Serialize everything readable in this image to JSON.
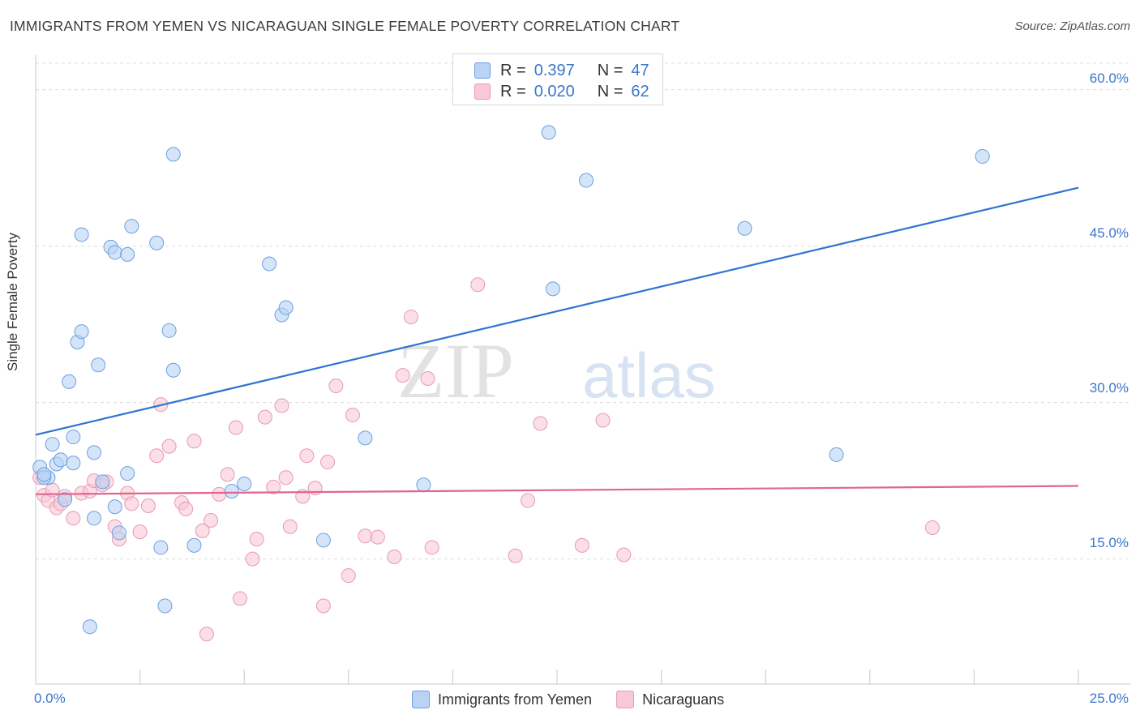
{
  "header": {
    "title": "IMMIGRANTS FROM YEMEN VS NICARAGUAN SINGLE FEMALE POVERTY CORRELATION CHART",
    "source": "Source: ZipAtlas.com"
  },
  "legend": {
    "rows": [
      {
        "r_label": "R =",
        "r_value": "0.397",
        "n_label": "N =",
        "n_value": "47"
      },
      {
        "r_label": "R =",
        "r_value": "0.020",
        "n_label": "N =",
        "n_value": "62"
      }
    ]
  },
  "bottom_legend": {
    "items": [
      "Immigrants from Yemen",
      "Nicaraguans"
    ]
  },
  "axis": {
    "ylabel": "Single Female Poverty",
    "y_ticks": [
      "15.0%",
      "30.0%",
      "45.0%",
      "60.0%"
    ],
    "x_min_label": "0.0%",
    "x_max_label": "25.0%"
  },
  "watermark": {
    "part1": "ZIP",
    "part2": "atlas"
  },
  "colors": {
    "blue_fill": "#b9d3f5",
    "blue_stroke": "#6f9ee0",
    "blue_line": "#2f73d0",
    "pink_fill": "#f9c8d6",
    "pink_stroke": "#e69ab4",
    "pink_line": "#e0668e"
  },
  "chart_data": {
    "type": "scatter",
    "xlabel": "",
    "ylabel": "Single Female Poverty",
    "xlim": [
      0,
      25
    ],
    "ylim": [
      3,
      63
    ],
    "grid": true,
    "series": [
      {
        "name": "Immigrants from Yemen",
        "trend": {
          "x": [
            0,
            25
          ],
          "y": [
            26.9,
            50.6
          ]
        },
        "points": [
          [
            0.1,
            23.8
          ],
          [
            0.3,
            22.8
          ],
          [
            0.4,
            26.0
          ],
          [
            0.5,
            24.1
          ],
          [
            0.6,
            24.5
          ],
          [
            0.7,
            20.7
          ],
          [
            0.8,
            32.0
          ],
          [
            0.9,
            26.7
          ],
          [
            0.9,
            24.2
          ],
          [
            1.0,
            35.8
          ],
          [
            1.1,
            46.1
          ],
          [
            1.1,
            36.8
          ],
          [
            1.3,
            8.5
          ],
          [
            1.4,
            18.9
          ],
          [
            1.4,
            25.2
          ],
          [
            1.5,
            33.6
          ],
          [
            1.6,
            22.4
          ],
          [
            1.8,
            44.9
          ],
          [
            1.9,
            20.0
          ],
          [
            1.9,
            44.4
          ],
          [
            2.0,
            17.5
          ],
          [
            2.2,
            44.2
          ],
          [
            2.2,
            23.2
          ],
          [
            2.3,
            46.9
          ],
          [
            2.9,
            45.3
          ],
          [
            3.0,
            16.1
          ],
          [
            3.1,
            10.5
          ],
          [
            3.2,
            36.9
          ],
          [
            3.3,
            33.1
          ],
          [
            3.3,
            53.8
          ],
          [
            3.8,
            16.3
          ],
          [
            4.7,
            21.5
          ],
          [
            5.0,
            22.2
          ],
          [
            5.6,
            43.3
          ],
          [
            5.9,
            38.4
          ],
          [
            6.0,
            39.1
          ],
          [
            6.9,
            16.8
          ],
          [
            7.9,
            26.6
          ],
          [
            9.3,
            22.1
          ],
          [
            12.3,
            55.9
          ],
          [
            12.4,
            40.9
          ],
          [
            13.2,
            51.3
          ],
          [
            17.0,
            46.7
          ],
          [
            19.2,
            25.0
          ],
          [
            22.7,
            53.6
          ],
          [
            0.2,
            22.8
          ],
          [
            0.2,
            23.1
          ]
        ]
      },
      {
        "name": "Nicaraguans",
        "trend": {
          "x": [
            0,
            25
          ],
          "y": [
            21.2,
            22.0
          ]
        },
        "points": [
          [
            0.1,
            22.8
          ],
          [
            0.2,
            21.1
          ],
          [
            0.3,
            20.6
          ],
          [
            0.4,
            21.6
          ],
          [
            0.5,
            19.9
          ],
          [
            0.6,
            20.3
          ],
          [
            0.7,
            21.0
          ],
          [
            0.9,
            18.9
          ],
          [
            1.1,
            21.3
          ],
          [
            1.3,
            21.5
          ],
          [
            1.4,
            22.5
          ],
          [
            1.6,
            22.1
          ],
          [
            1.7,
            22.4
          ],
          [
            1.9,
            18.1
          ],
          [
            2.0,
            16.9
          ],
          [
            2.2,
            21.3
          ],
          [
            2.3,
            20.3
          ],
          [
            2.5,
            17.6
          ],
          [
            2.7,
            20.1
          ],
          [
            2.9,
            24.9
          ],
          [
            3.0,
            29.8
          ],
          [
            3.2,
            25.8
          ],
          [
            3.5,
            20.4
          ],
          [
            3.6,
            19.8
          ],
          [
            3.8,
            26.3
          ],
          [
            4.0,
            17.7
          ],
          [
            4.1,
            7.8
          ],
          [
            4.2,
            18.7
          ],
          [
            4.4,
            21.2
          ],
          [
            4.6,
            23.1
          ],
          [
            4.8,
            27.6
          ],
          [
            4.9,
            11.2
          ],
          [
            5.2,
            15.0
          ],
          [
            5.3,
            16.9
          ],
          [
            5.5,
            28.6
          ],
          [
            5.7,
            21.9
          ],
          [
            5.9,
            29.7
          ],
          [
            6.0,
            22.8
          ],
          [
            6.1,
            18.1
          ],
          [
            6.4,
            21.0
          ],
          [
            6.5,
            24.9
          ],
          [
            6.7,
            21.8
          ],
          [
            6.9,
            10.5
          ],
          [
            7.0,
            24.3
          ],
          [
            7.2,
            31.6
          ],
          [
            7.5,
            13.4
          ],
          [
            7.6,
            28.8
          ],
          [
            7.9,
            17.2
          ],
          [
            8.2,
            17.1
          ],
          [
            8.6,
            15.2
          ],
          [
            8.8,
            32.6
          ],
          [
            9.0,
            38.2
          ],
          [
            9.4,
            32.3
          ],
          [
            9.5,
            16.1
          ],
          [
            10.6,
            41.3
          ],
          [
            11.5,
            15.3
          ],
          [
            11.8,
            20.6
          ],
          [
            12.1,
            28.0
          ],
          [
            13.1,
            16.3
          ],
          [
            13.6,
            28.3
          ],
          [
            14.1,
            15.4
          ],
          [
            21.5,
            18.0
          ]
        ]
      }
    ]
  }
}
